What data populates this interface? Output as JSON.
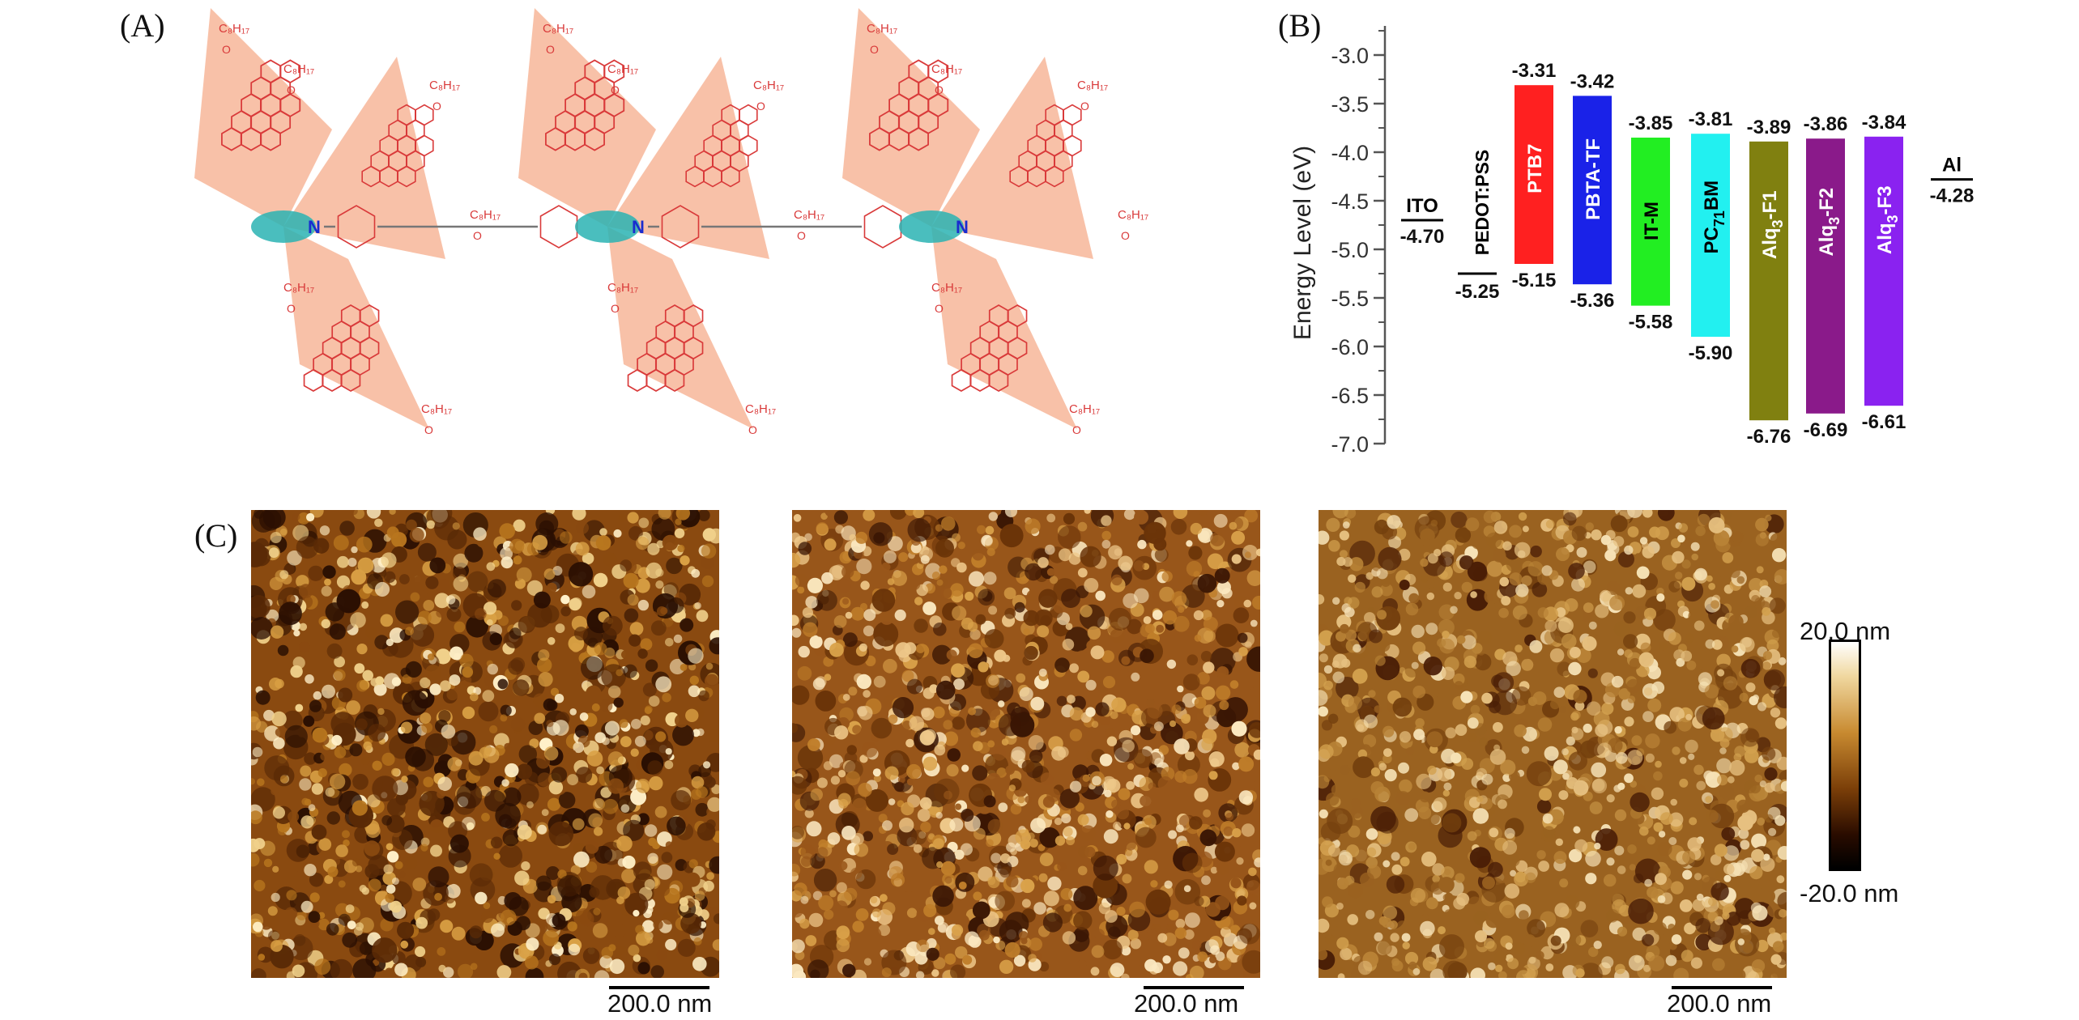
{
  "panels": {
    "a": "(A)",
    "b": "(B)",
    "c": "(C)"
  },
  "panel_a": {
    "atom_label": "N",
    "substituent": "C₈H₁₇",
    "oxygen": "O",
    "colors": {
      "plane": "#f4a07a",
      "bonds": "#d93a3a",
      "core": "#2ab3b3",
      "linker": "#777777"
    }
  },
  "chart_data": {
    "type": "bar",
    "title": "",
    "ylabel": "Energy Level (eV)",
    "ylim": [
      -7.0,
      -2.7
    ],
    "yticks": [
      "-3.0",
      "-3.5",
      "-4.0",
      "-4.5",
      "-5.0",
      "-5.5",
      "-6.0",
      "-6.5",
      "-7.0"
    ],
    "ytick_values": [
      -3.0,
      -3.5,
      -4.0,
      -4.5,
      -5.0,
      -5.5,
      -6.0,
      -6.5,
      -7.0
    ],
    "items": [
      {
        "name": "ITO",
        "kind": "line",
        "level": -4.7,
        "level_label": "-4.70",
        "color": "#000000",
        "text_color": "#000000"
      },
      {
        "name": "PEDOT:PSS",
        "kind": "line",
        "level": -5.25,
        "level_label": "-5.25",
        "color": "#000000",
        "text_color": "#000000"
      },
      {
        "name": "PTB7",
        "kind": "bar",
        "top": -3.31,
        "bottom": -5.15,
        "top_label": "-3.31",
        "bottom_label": "-5.15",
        "color": "#ff2020",
        "text_color": "#ffffff"
      },
      {
        "name": "PBTA-TF",
        "kind": "bar",
        "top": -3.42,
        "bottom": -5.36,
        "top_label": "-3.42",
        "bottom_label": "-5.36",
        "color": "#1a22e8",
        "text_color": "#ffffff"
      },
      {
        "name": "IT-M",
        "kind": "bar",
        "top": -3.85,
        "bottom": -5.58,
        "top_label": "-3.85",
        "bottom_label": "-5.58",
        "color": "#22ee22",
        "text_color": "#000000"
      },
      {
        "name": "PC71BM",
        "kind": "bar",
        "top": -3.81,
        "bottom": -5.9,
        "top_label": "-3.81",
        "bottom_label": "-5.90",
        "color": "#22f0f0",
        "text_color": "#000000"
      },
      {
        "name": "Alq3-F1",
        "kind": "bar",
        "top": -3.89,
        "bottom": -6.76,
        "top_label": "-3.89",
        "bottom_label": "-6.76",
        "color": "#808010",
        "text_color": "#ffffff"
      },
      {
        "name": "Alq3-F2",
        "kind": "bar",
        "top": -3.86,
        "bottom": -6.69,
        "top_label": "-3.86",
        "bottom_label": "-6.69",
        "color": "#8a1a8a",
        "text_color": "#ffffff"
      },
      {
        "name": "Alq3-F3",
        "kind": "bar",
        "top": -3.84,
        "bottom": -6.61,
        "top_label": "-3.84",
        "bottom_label": "-6.61",
        "color": "#8a22f0",
        "text_color": "#ffffff"
      },
      {
        "name": "Al",
        "kind": "line",
        "level": -4.28,
        "level_label": "-4.28",
        "color": "#000000",
        "text_color": "#000000"
      }
    ]
  },
  "afm": {
    "images": [
      {
        "scale_label": "200.0 nm"
      },
      {
        "scale_label": "200.0 nm"
      },
      {
        "scale_label": "200.0 nm"
      }
    ],
    "colorbar": {
      "max_label": "20.0 nm",
      "min_label": "-20.0 nm"
    }
  }
}
